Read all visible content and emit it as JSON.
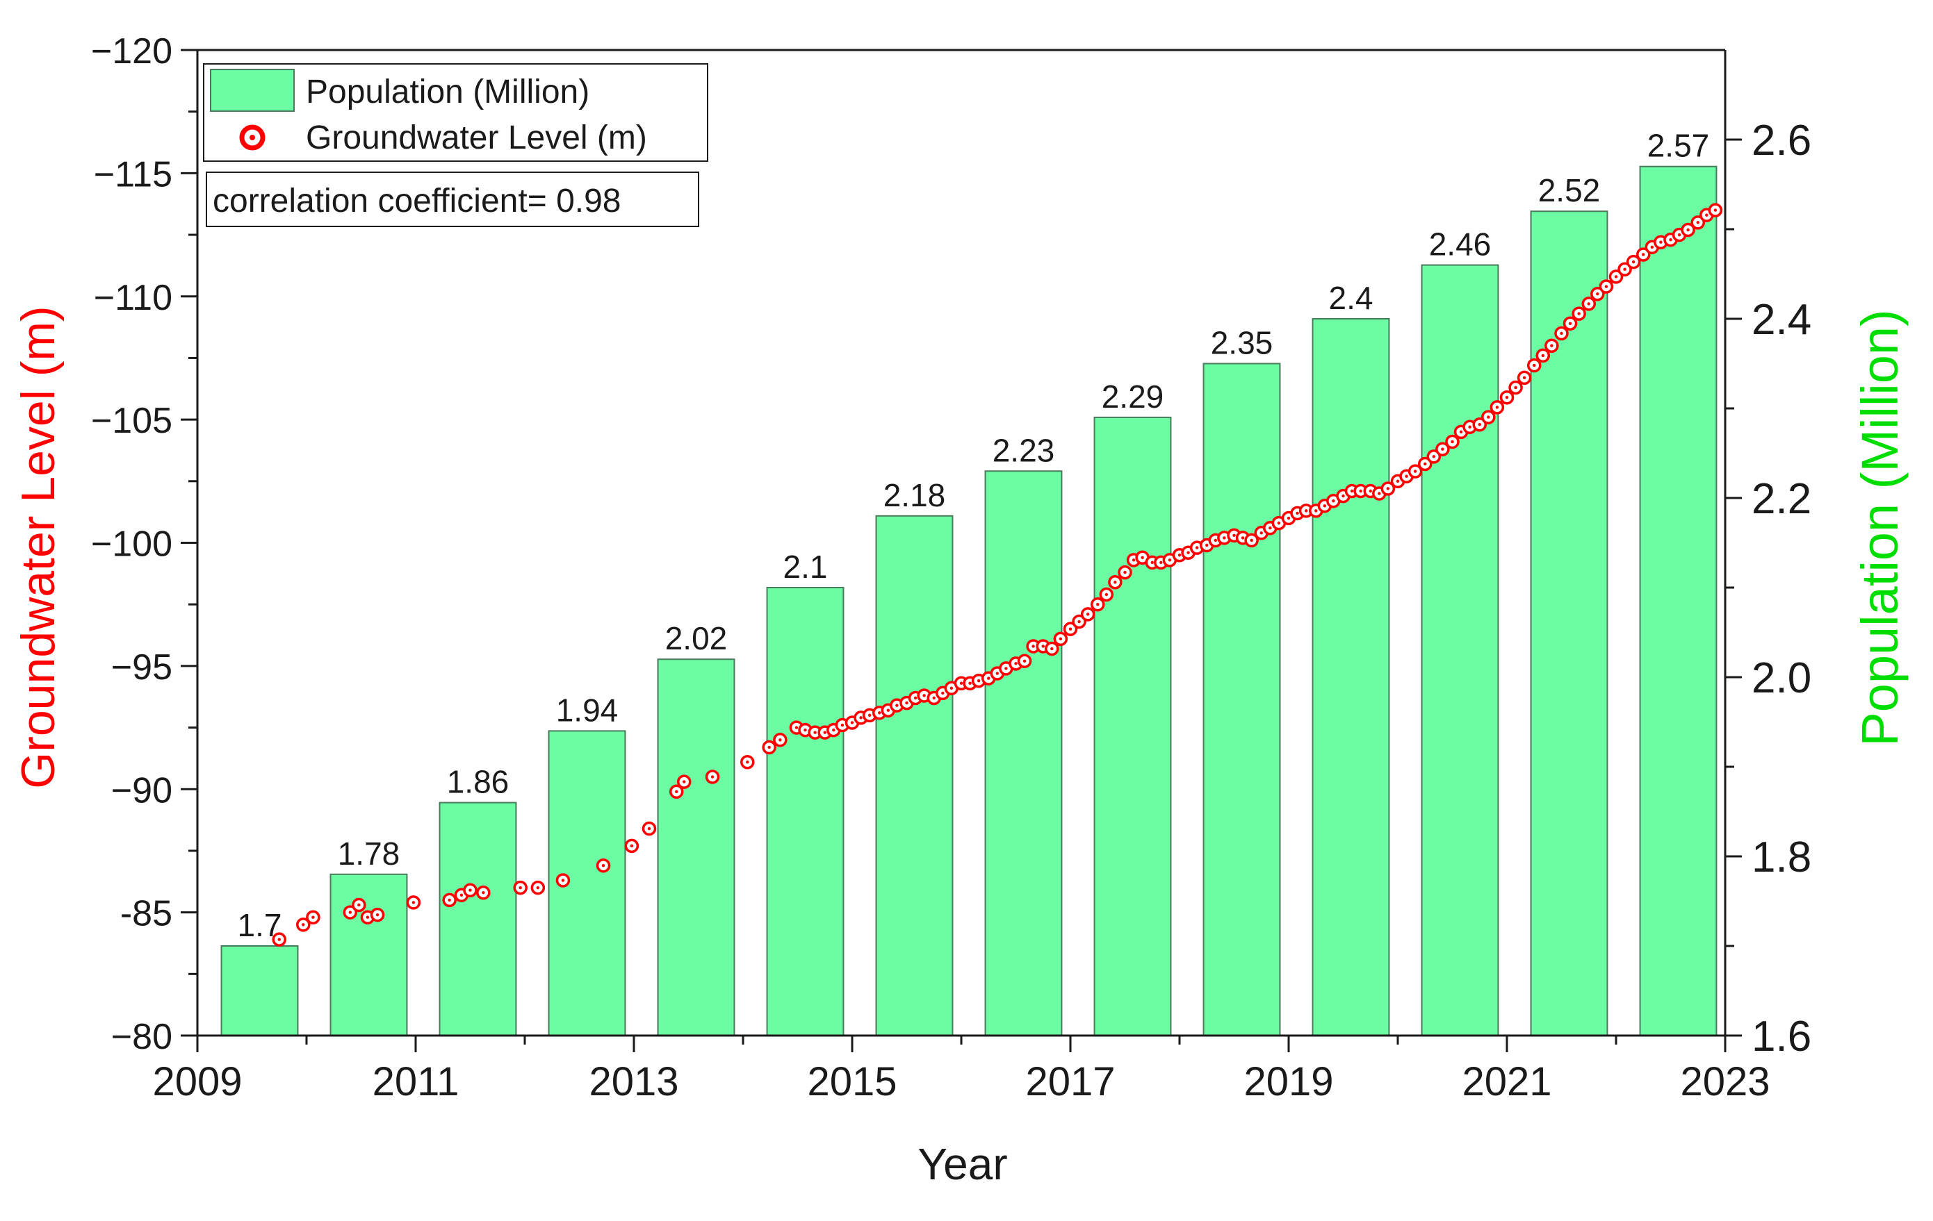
{
  "chart_data": {
    "type": "bar+scatter",
    "title": "",
    "xlabel": "Year",
    "ylabel_left": "Groundwater Level (m)",
    "ylabel_right": "Population (Million)",
    "xlim": [
      2009,
      2023
    ],
    "x_ticks": [
      2009,
      2011,
      2013,
      2015,
      2017,
      2019,
      2021,
      2023
    ],
    "x_tick_labels": [
      "2009",
      "2011",
      "2013",
      "2015",
      "2017",
      "2019",
      "2021",
      "2023"
    ],
    "ylim_left": [
      -80,
      -120
    ],
    "y_left_ticks": [
      -80,
      -85,
      -90,
      -95,
      -100,
      -105,
      -110,
      -115,
      -120
    ],
    "y_left_tick_labels": [
      "−80",
      "-85",
      "−90",
      "−95",
      "−100",
      "−105",
      "−110",
      "−115",
      "−120"
    ],
    "ylim_right": [
      1.6,
      2.7
    ],
    "y_right_ticks": [
      1.6,
      1.8,
      2.0,
      2.2,
      2.4,
      2.6
    ],
    "y_right_tick_labels": [
      "1.6",
      "1.8",
      "2.0",
      "2.2",
      "2.4",
      "2.6"
    ],
    "colors": {
      "bar_fill": "#6cfca3",
      "bar_edge": "#4a7a5c",
      "marker": "#ff0000",
      "left_axis_label": "#ff0000",
      "right_axis_label": "#00dd00"
    },
    "legend": {
      "position": "top-left",
      "items": [
        {
          "label": "Population (Million)",
          "kind": "bar"
        },
        {
          "label": "Groundwater Level (m)",
          "kind": "marker"
        }
      ]
    },
    "annotation": "correlation coefficient= 0.98",
    "population": {
      "name": "Population (Million)",
      "axis": "right",
      "x": [
        2009.57,
        2010.57,
        2011.57,
        2012.57,
        2013.57,
        2014.57,
        2015.57,
        2016.57,
        2017.57,
        2018.57,
        2019.57,
        2020.57,
        2021.57,
        2022.57
      ],
      "values": [
        1.7,
        1.78,
        1.86,
        1.94,
        2.02,
        2.1,
        2.18,
        2.23,
        2.29,
        2.35,
        2.4,
        2.46,
        2.52,
        2.57
      ],
      "labels": [
        "1.7",
        "1.78",
        "1.86",
        "1.94",
        "2.02",
        "2.1",
        "2.18",
        "2.23",
        "2.29",
        "2.35",
        "2.4",
        "2.46",
        "2.52",
        "2.57"
      ],
      "bar_width_years": 0.7
    },
    "groundwater": {
      "name": "Groundwater Level (m)",
      "axis": "left",
      "points": [
        [
          2009.75,
          -83.9
        ],
        [
          2009.97,
          -84.5
        ],
        [
          2010.06,
          -84.8
        ],
        [
          2010.4,
          -85.0
        ],
        [
          2010.48,
          -85.3
        ],
        [
          2010.56,
          -84.8
        ],
        [
          2010.65,
          -84.9
        ],
        [
          2010.98,
          -85.4
        ],
        [
          2011.31,
          -85.5
        ],
        [
          2011.42,
          -85.7
        ],
        [
          2011.5,
          -85.9
        ],
        [
          2011.62,
          -85.8
        ],
        [
          2011.96,
          -86.0
        ],
        [
          2012.12,
          -86.0
        ],
        [
          2012.35,
          -86.3
        ],
        [
          2012.72,
          -86.9
        ],
        [
          2012.98,
          -87.7
        ],
        [
          2013.14,
          -88.4
        ],
        [
          2013.39,
          -89.9
        ],
        [
          2013.46,
          -90.3
        ],
        [
          2013.72,
          -90.5
        ],
        [
          2014.04,
          -91.1
        ],
        [
          2014.24,
          -91.7
        ],
        [
          2014.34,
          -92.0
        ],
        [
          2014.49,
          -92.5
        ],
        [
          2014.57,
          -92.4
        ],
        [
          2014.66,
          -92.3
        ],
        [
          2014.75,
          -92.3
        ],
        [
          2014.83,
          -92.4
        ],
        [
          2014.91,
          -92.6
        ],
        [
          2015.0,
          -92.7
        ],
        [
          2015.08,
          -92.9
        ],
        [
          2015.16,
          -93.0
        ],
        [
          2015.25,
          -93.1
        ],
        [
          2015.33,
          -93.2
        ],
        [
          2015.41,
          -93.4
        ],
        [
          2015.5,
          -93.5
        ],
        [
          2015.58,
          -93.7
        ],
        [
          2015.66,
          -93.8
        ],
        [
          2015.75,
          -93.7
        ],
        [
          2015.83,
          -93.9
        ],
        [
          2015.91,
          -94.1
        ],
        [
          2016.0,
          -94.3
        ],
        [
          2016.08,
          -94.3
        ],
        [
          2016.16,
          -94.4
        ],
        [
          2016.25,
          -94.5
        ],
        [
          2016.33,
          -94.7
        ],
        [
          2016.41,
          -94.9
        ],
        [
          2016.5,
          -95.1
        ],
        [
          2016.58,
          -95.2
        ],
        [
          2016.66,
          -95.8
        ],
        [
          2016.75,
          -95.8
        ],
        [
          2016.83,
          -95.7
        ],
        [
          2016.91,
          -96.1
        ],
        [
          2017.0,
          -96.5
        ],
        [
          2017.08,
          -96.8
        ],
        [
          2017.16,
          -97.1
        ],
        [
          2017.25,
          -97.5
        ],
        [
          2017.33,
          -97.9
        ],
        [
          2017.41,
          -98.4
        ],
        [
          2017.5,
          -98.8
        ],
        [
          2017.58,
          -99.3
        ],
        [
          2017.66,
          -99.4
        ],
        [
          2017.75,
          -99.2
        ],
        [
          2017.83,
          -99.2
        ],
        [
          2017.91,
          -99.3
        ],
        [
          2018.0,
          -99.5
        ],
        [
          2018.08,
          -99.6
        ],
        [
          2018.16,
          -99.8
        ],
        [
          2018.25,
          -99.9
        ],
        [
          2018.33,
          -100.1
        ],
        [
          2018.41,
          -100.2
        ],
        [
          2018.5,
          -100.3
        ],
        [
          2018.58,
          -100.2
        ],
        [
          2018.66,
          -100.1
        ],
        [
          2018.75,
          -100.4
        ],
        [
          2018.83,
          -100.6
        ],
        [
          2018.91,
          -100.8
        ],
        [
          2019.0,
          -101.0
        ],
        [
          2019.08,
          -101.2
        ],
        [
          2019.16,
          -101.3
        ],
        [
          2019.25,
          -101.3
        ],
        [
          2019.33,
          -101.5
        ],
        [
          2019.41,
          -101.7
        ],
        [
          2019.5,
          -101.9
        ],
        [
          2019.58,
          -102.1
        ],
        [
          2019.66,
          -102.1
        ],
        [
          2019.75,
          -102.1
        ],
        [
          2019.83,
          -102.0
        ],
        [
          2019.91,
          -102.2
        ],
        [
          2020.0,
          -102.5
        ],
        [
          2020.08,
          -102.7
        ],
        [
          2020.16,
          -102.9
        ],
        [
          2020.25,
          -103.2
        ],
        [
          2020.33,
          -103.5
        ],
        [
          2020.41,
          -103.8
        ],
        [
          2020.5,
          -104.1
        ],
        [
          2020.58,
          -104.5
        ],
        [
          2020.66,
          -104.7
        ],
        [
          2020.75,
          -104.8
        ],
        [
          2020.83,
          -105.1
        ],
        [
          2020.91,
          -105.5
        ],
        [
          2021.0,
          -105.9
        ],
        [
          2021.08,
          -106.3
        ],
        [
          2021.16,
          -106.7
        ],
        [
          2021.25,
          -107.2
        ],
        [
          2021.33,
          -107.6
        ],
        [
          2021.41,
          -108.0
        ],
        [
          2021.5,
          -108.5
        ],
        [
          2021.58,
          -108.9
        ],
        [
          2021.66,
          -109.3
        ],
        [
          2021.75,
          -109.7
        ],
        [
          2021.83,
          -110.1
        ],
        [
          2021.91,
          -110.4
        ],
        [
          2022.0,
          -110.8
        ],
        [
          2022.08,
          -111.1
        ],
        [
          2022.16,
          -111.4
        ],
        [
          2022.25,
          -111.7
        ],
        [
          2022.33,
          -112.0
        ],
        [
          2022.41,
          -112.2
        ],
        [
          2022.5,
          -112.3
        ],
        [
          2022.58,
          -112.5
        ],
        [
          2022.66,
          -112.7
        ],
        [
          2022.75,
          -113.0
        ],
        [
          2022.83,
          -113.3
        ],
        [
          2022.91,
          -113.5
        ]
      ]
    }
  }
}
